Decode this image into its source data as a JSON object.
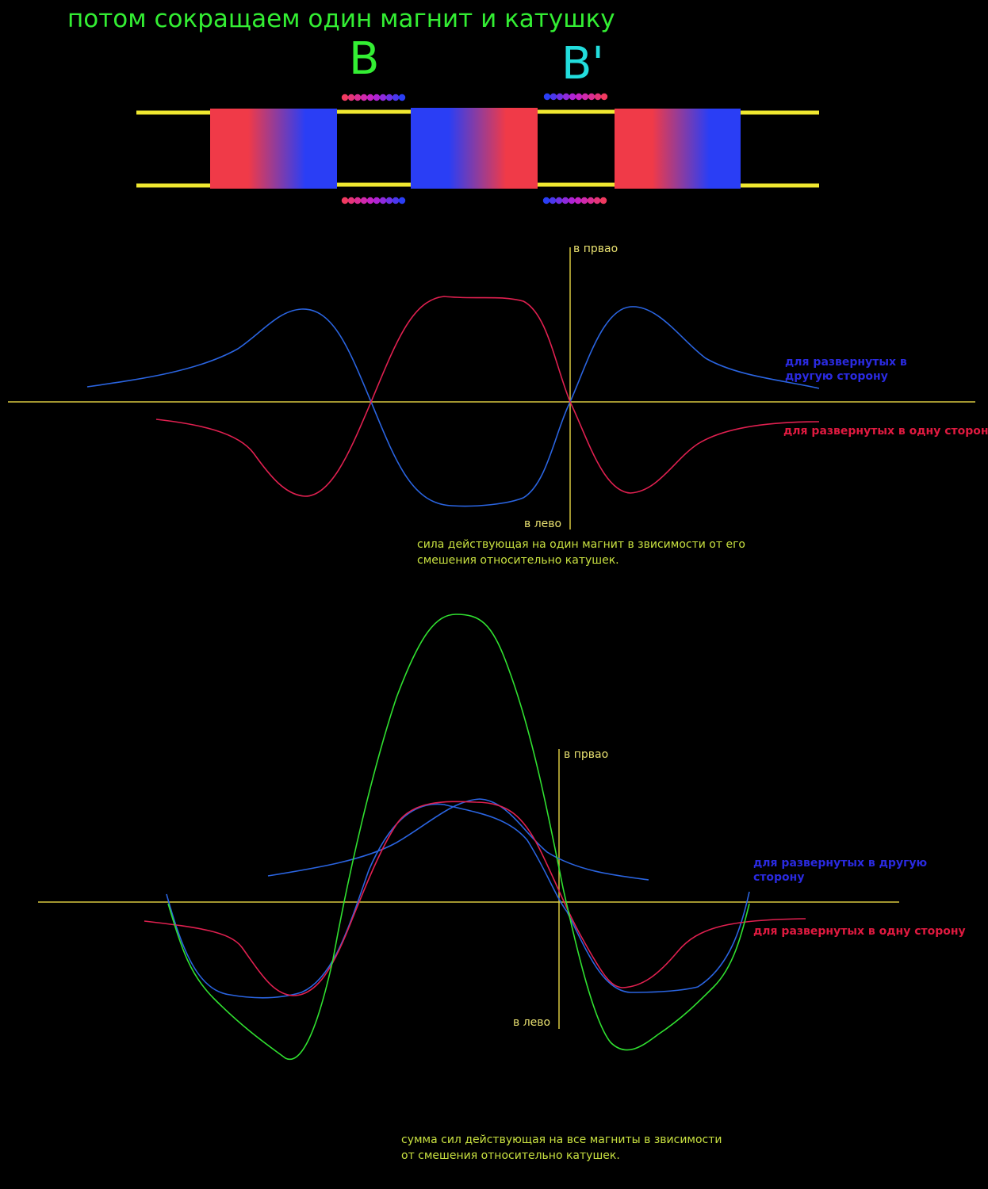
{
  "title": "потом сокращаем один магнит и катушку",
  "coils": {
    "a_label": "B",
    "b_label": "B'"
  },
  "colors": {
    "background": "#000000",
    "title": "#33ee33",
    "coil_b_label": "#22dddd",
    "rail": "#f0e830",
    "magnet_red": "#f03a48",
    "magnet_blue": "#2a3ef5",
    "axis": "#d8c840",
    "curve_blue": "#2a64e0",
    "curve_red": "#e02050",
    "curve_green": "#30e030",
    "legend_blue": "#2a2ae0",
    "legend_red": "#e01a40"
  },
  "chart1": {
    "axis_top_label": "в првао",
    "axis_bottom_label": "в лево",
    "legend_other_direction": "для развернутых в другую сторону",
    "legend_same_direction": "для развернутых в одну сторону",
    "caption": "сила действующая на один магнит в звисимости от его смешения относительно катушек."
  },
  "chart2": {
    "axis_top_label": "в првао",
    "axis_bottom_label": "в лево",
    "legend_other_direction": "для развернутых в другую сторону",
    "legend_same_direction": "для развернутых в одну сторону",
    "caption": "сумма сил действующая на все магниты в звисимости от смешения относительно катушек."
  }
}
